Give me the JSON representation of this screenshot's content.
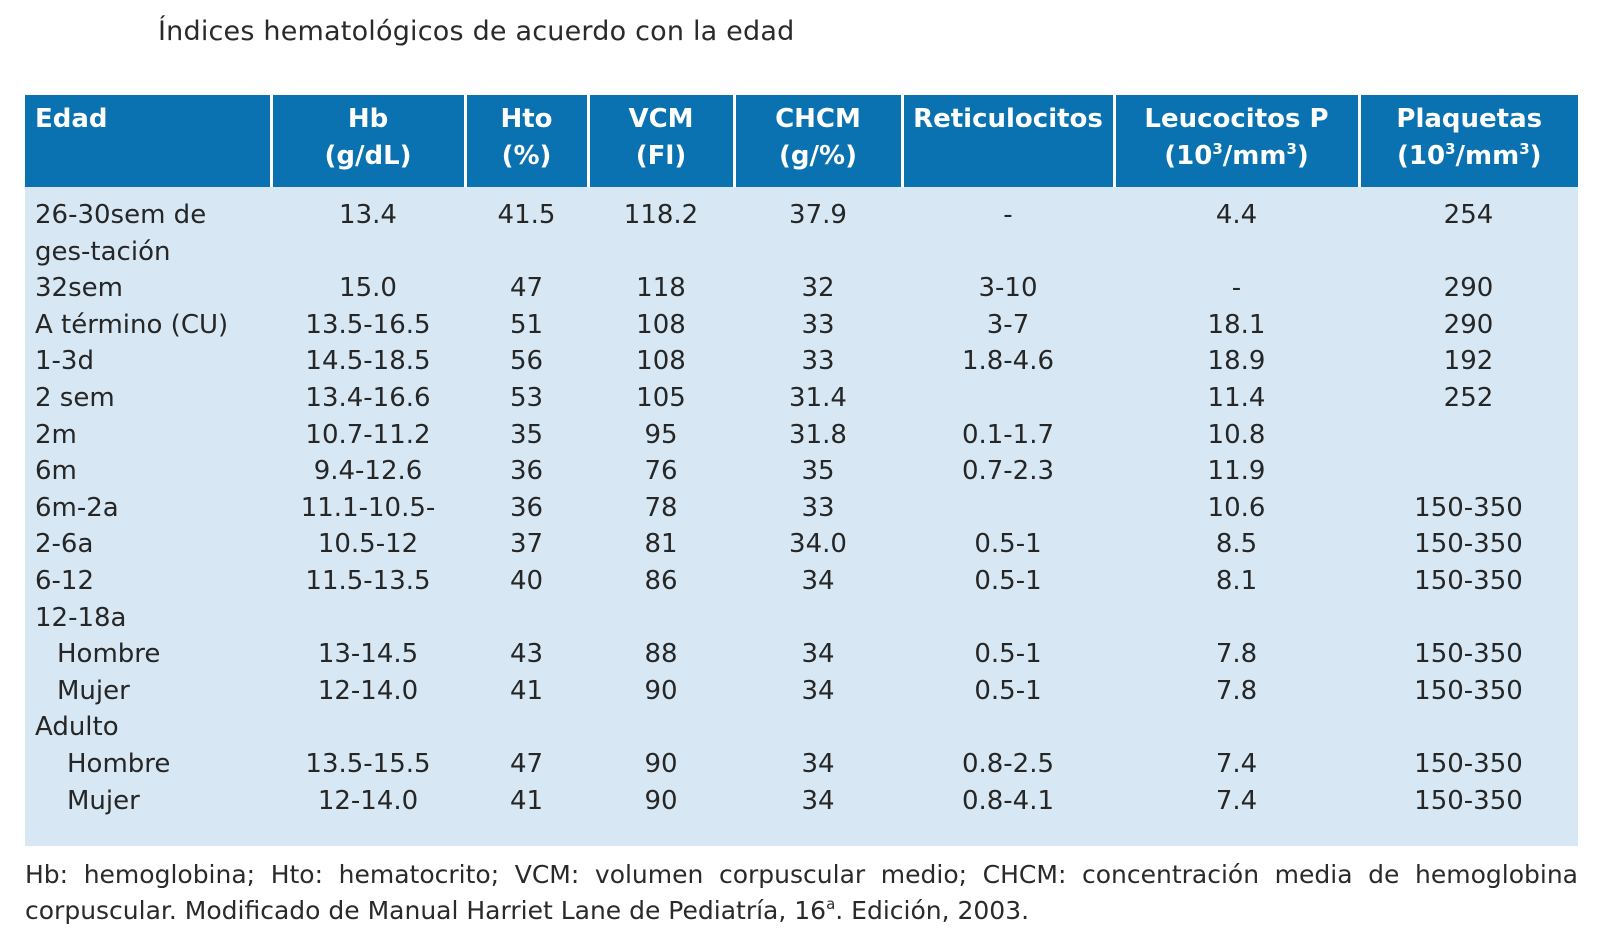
{
  "title": "Índices hematológicos de acuerdo con la edad",
  "table": {
    "headers": [
      {
        "line1": "Edad",
        "line2": "",
        "sup": "",
        "line2_end": ""
      },
      {
        "line1": "Hb",
        "line2": "(g/dL)",
        "sup": "",
        "line2_end": ""
      },
      {
        "line1": "Hto",
        "line2": "(%)",
        "sup": "",
        "line2_end": ""
      },
      {
        "line1": "VCM",
        "line2": "(Fl)",
        "sup": "",
        "line2_end": ""
      },
      {
        "line1": "CHCM",
        "line2": "(g/%)",
        "sup": "",
        "line2_end": ""
      },
      {
        "line1": "Reticulocitos",
        "line2": "",
        "sup": "",
        "line2_end": ""
      },
      {
        "line1": "Leucocitos P",
        "line2": "(10",
        "sup": "3",
        "line2_end": "/mm3)"
      },
      {
        "line1": "Plaquetas",
        "line2": "(10",
        "sup": "3",
        "line2_end": "/mm3)"
      }
    ],
    "rows": [
      {
        "edad": "26-30sem de ges-tación",
        "hb": "13.4",
        "hto": "41.5",
        "vcm": "118.2",
        "chcm": "37.9",
        "ret": "-",
        "leu": "4.4",
        "plaq": "254"
      },
      {
        "edad": "32sem",
        "hb": "15.0",
        "hto": "47",
        "vcm": "118",
        "chcm": "32",
        "ret": "3-10",
        "leu": "-",
        "plaq": "290"
      },
      {
        "edad": "A término (CU)",
        "hb": "13.5-16.5",
        "hto": "51",
        "vcm": "108",
        "chcm": "33",
        "ret": "3-7",
        "leu": "18.1",
        "plaq": "290"
      },
      {
        "edad": "1-3d",
        "hb": "14.5-18.5",
        "hto": "56",
        "vcm": "108",
        "chcm": "33",
        "ret": "1.8-4.6",
        "leu": "18.9",
        "plaq": "192"
      },
      {
        "edad": "2 sem",
        "hb": "13.4-16.6",
        "hto": "53",
        "vcm": "105",
        "chcm": "31.4",
        "ret": "",
        "leu": "11.4",
        "plaq": "252"
      },
      {
        "edad": "2m",
        "hb": "10.7-11.2",
        "hto": "35",
        "vcm": "95",
        "chcm": "31.8",
        "ret": "0.1-1.7",
        "leu": "10.8",
        "plaq": ""
      },
      {
        "edad": "6m",
        "hb": "9.4-12.6",
        "hto": "36",
        "vcm": "76",
        "chcm": "35",
        "ret": "0.7-2.3",
        "leu": "11.9",
        "plaq": ""
      },
      {
        "edad": "6m-2a",
        "hb": "11.1-10.5-",
        "hto": "36",
        "vcm": "78",
        "chcm": "33",
        "ret": "",
        "leu": "10.6",
        "plaq": "150-350"
      },
      {
        "edad": "2-6a",
        "hb": "10.5-12",
        "hto": "37",
        "vcm": "81",
        "chcm": "34.0",
        "ret": "0.5-1",
        "leu": "8.5",
        "plaq": "150-350"
      },
      {
        "edad": "6-12",
        "hb": "11.5-13.5",
        "hto": "40",
        "vcm": "86",
        "chcm": "34",
        "ret": "0.5-1",
        "leu": "8.1",
        "plaq": "150-350"
      },
      {
        "edad": "12-18a",
        "hb": "",
        "hto": "",
        "vcm": "",
        "chcm": "",
        "ret": "",
        "leu": "",
        "plaq": ""
      },
      {
        "edad": "Hombre",
        "hb": "13-14.5",
        "hto": "43",
        "vcm": "88",
        "chcm": "34",
        "ret": "0.5-1",
        "leu": "7.8",
        "plaq": "150-350"
      },
      {
        "edad": "Mujer",
        "hb": "12-14.0",
        "hto": "41",
        "vcm": "90",
        "chcm": "34",
        "ret": "0.5-1",
        "leu": "7.8",
        "plaq": "150-350"
      },
      {
        "edad": "Adulto",
        "hb": "",
        "hto": "",
        "vcm": "",
        "chcm": "",
        "ret": "",
        "leu": "",
        "plaq": ""
      },
      {
        "edad": "Hombre",
        "hb": "13.5-15.5",
        "hto": "47",
        "vcm": "90",
        "chcm": "34",
        "ret": "0.8-2.5",
        "leu": "7.4",
        "plaq": "150-350"
      },
      {
        "edad": "Mujer",
        "hb": "12-14.0",
        "hto": "41",
        "vcm": "90",
        "chcm": "34",
        "ret": "0.8-4.1",
        "leu": "7.4",
        "plaq": "150-350"
      }
    ]
  },
  "footnote": {
    "part1": "Hb: hemoglobina; Hto: hematocrito; VCM: volumen corpuscular medio; CHCM: concentración media de hemoglobina corpuscular. Modificado de Manual Harriet Lane de Pediatría, 16",
    "sup": "a",
    "part2": ". Edición, 2003."
  },
  "colors": {
    "header_bg": "#0a72b0",
    "body_bg": "#d7e8f4"
  }
}
